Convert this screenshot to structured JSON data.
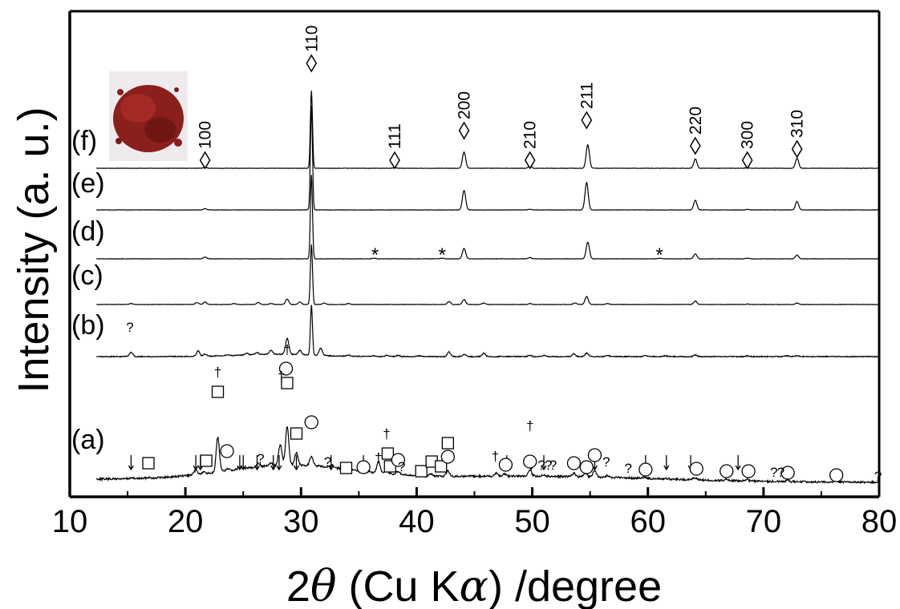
{
  "chart_data": {
    "type": "line",
    "title": "",
    "xlabel_prefix": "2",
    "xlabel_theta": "θ",
    "xlabel_rest": " (Cu K",
    "xlabel_alpha": "α",
    "xlabel_suffix": ") /degree",
    "ylabel": "Intensity (a. u.)",
    "xlim": [
      10,
      80
    ],
    "xticks": [
      "10",
      "20",
      "30",
      "40",
      "50",
      "60",
      "70",
      "80"
    ],
    "grid": false,
    "legend": "none",
    "colors": {
      "line": "#000000",
      "sample_photo": "#8a1f1c"
    },
    "series": [
      {
        "name": "(a)",
        "offset": 0,
        "peaks": [
          [
            15.3,
            1
          ],
          [
            16.8,
            1
          ],
          [
            20.9,
            6
          ],
          [
            21.6,
            2
          ],
          [
            22.8,
            43
          ],
          [
            23.6,
            2
          ],
          [
            24.7,
            2
          ],
          [
            26.3,
            5
          ],
          [
            27.4,
            3
          ],
          [
            28.2,
            26
          ],
          [
            28.8,
            47
          ],
          [
            29.6,
            16
          ],
          [
            30.9,
            12
          ],
          [
            32.7,
            3
          ],
          [
            33.8,
            2
          ],
          [
            35.4,
            2
          ],
          [
            36.7,
            14
          ],
          [
            37.4,
            5
          ],
          [
            38.4,
            4
          ],
          [
            40.4,
            2
          ],
          [
            41.2,
            3
          ],
          [
            42.7,
            7
          ],
          [
            46.9,
            4
          ],
          [
            47.6,
            3
          ],
          [
            49.8,
            7
          ],
          [
            51.0,
            2
          ],
          [
            53.6,
            4
          ],
          [
            54.6,
            5
          ],
          [
            55.4,
            8
          ],
          [
            56.5,
            2
          ],
          [
            59.7,
            2
          ],
          [
            61.6,
            1
          ],
          [
            63.8,
            1
          ],
          [
            64.1,
            2
          ],
          [
            66.8,
            2
          ],
          [
            68.6,
            2
          ],
          [
            72.1,
            2
          ],
          [
            76.3,
            2
          ]
        ]
      },
      {
        "name": "(b)",
        "offset": 1,
        "peaks": [
          [
            15.3,
            10
          ],
          [
            21.1,
            13
          ],
          [
            21.7,
            5
          ],
          [
            23.6,
            2
          ],
          [
            25.3,
            4
          ],
          [
            26.2,
            5
          ],
          [
            27.4,
            9
          ],
          [
            28.8,
            38
          ],
          [
            29.9,
            10
          ],
          [
            30.9,
            118
          ],
          [
            31.7,
            17
          ],
          [
            34.1,
            3
          ],
          [
            36.3,
            2
          ],
          [
            37.4,
            3
          ],
          [
            38.4,
            3
          ],
          [
            40.2,
            2
          ],
          [
            42.8,
            11
          ],
          [
            44.1,
            5
          ],
          [
            45.8,
            8
          ],
          [
            49.8,
            3
          ],
          [
            51.0,
            3
          ],
          [
            53.6,
            7
          ],
          [
            54.7,
            8
          ],
          [
            56.5,
            3
          ],
          [
            59.8,
            2
          ],
          [
            61.5,
            2
          ],
          [
            64.1,
            4
          ],
          [
            68.6,
            2
          ],
          [
            72.0,
            2
          ],
          [
            72.9,
            2
          ]
        ]
      },
      {
        "name": "(c)",
        "offset": 2,
        "peaks": [
          [
            15.3,
            2
          ],
          [
            21.0,
            4
          ],
          [
            21.7,
            5
          ],
          [
            24.2,
            2
          ],
          [
            26.3,
            4
          ],
          [
            27.4,
            2
          ],
          [
            28.8,
            11
          ],
          [
            29.9,
            5
          ],
          [
            30.9,
            120
          ],
          [
            32.0,
            3
          ],
          [
            34.1,
            2
          ],
          [
            42.8,
            6
          ],
          [
            44.1,
            10
          ],
          [
            45.8,
            3
          ],
          [
            49.8,
            2
          ],
          [
            53.7,
            3
          ],
          [
            54.7,
            16
          ],
          [
            56.5,
            2
          ],
          [
            64.1,
            7
          ],
          [
            68.6,
            1
          ],
          [
            72.9,
            3
          ]
        ]
      },
      {
        "name": "(d)",
        "offset": 3,
        "peaks": [
          [
            21.7,
            3
          ],
          [
            30.9,
            135
          ],
          [
            36.3,
            1
          ],
          [
            42.2,
            1
          ],
          [
            44.1,
            17
          ],
          [
            49.8,
            2
          ],
          [
            54.8,
            27
          ],
          [
            61.0,
            1
          ],
          [
            64.1,
            8
          ],
          [
            68.6,
            1
          ],
          [
            72.9,
            6
          ]
        ]
      },
      {
        "name": "(e)",
        "offset": 4,
        "peaks": [
          [
            21.7,
            2
          ],
          [
            30.9,
            160
          ],
          [
            44.1,
            30
          ],
          [
            49.8,
            1
          ],
          [
            54.7,
            42
          ],
          [
            64.1,
            15
          ],
          [
            68.6,
            1
          ],
          [
            72.9,
            13
          ]
        ]
      },
      {
        "name": "(f)",
        "offset": 5,
        "peaks": [
          [
            21.7,
            2
          ],
          [
            30.9,
            125
          ],
          [
            38.1,
            1
          ],
          [
            44.1,
            26
          ],
          [
            49.8,
            4
          ],
          [
            54.8,
            38
          ],
          [
            64.1,
            15
          ],
          [
            68.6,
            1
          ],
          [
            72.9,
            16
          ]
        ]
      }
    ],
    "indexing": [
      {
        "label": "100",
        "x": 21.7
      },
      {
        "label": "110",
        "x": 30.9
      },
      {
        "label": "111",
        "x": 38.1
      },
      {
        "label": "200",
        "x": 44.1
      },
      {
        "label": "210",
        "x": 49.8
      },
      {
        "label": "211",
        "x": 54.7
      },
      {
        "label": "220",
        "x": 64.1
      },
      {
        "label": "300",
        "x": 68.6
      },
      {
        "label": "310",
        "x": 72.9
      }
    ],
    "markers_d": [
      {
        "symbol": "*",
        "x": 36.4
      },
      {
        "symbol": "*",
        "x": 42.2
      },
      {
        "symbol": "*",
        "x": 61.0
      }
    ],
    "markers_b": [
      {
        "symbol": "?",
        "x": 15.2
      }
    ],
    "markers_a": {
      "arrows": [
        15.3,
        20.9,
        21.3,
        24.7,
        25.0,
        26.2,
        27.6,
        28.1,
        29.6,
        32.6,
        35.4,
        47.8,
        49.9,
        51.0,
        55.4,
        59.8,
        61.6,
        63.7,
        67.8
      ],
      "squares": [
        16.8,
        22.8,
        21.8,
        28.8,
        29.6,
        33.9,
        37.5,
        37.7,
        40.4,
        41.3,
        42.1,
        42.7
      ],
      "circles": [
        23.6,
        28.7,
        30.9,
        35.4,
        38.4,
        42.7,
        47.7,
        49.8,
        53.6,
        54.7,
        55.4,
        59.8,
        64.2,
        66.8,
        68.7,
        72.1,
        76.3
      ],
      "daggers": [
        22.8,
        28.3,
        28.8,
        36.7,
        37.4,
        46.8,
        49.8
      ],
      "questions": [
        26.5,
        32.3,
        38.7,
        50.8,
        51.4,
        51.8,
        56.4,
        58.3,
        70.9,
        71.5,
        79.9
      ]
    }
  }
}
